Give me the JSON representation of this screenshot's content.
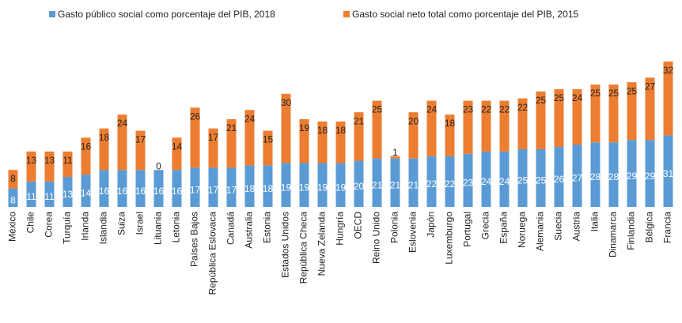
{
  "chart_data": {
    "type": "stacked_bar",
    "categories": [
      "México",
      "Chile",
      "Corea",
      "Turquía",
      "Irlanda",
      "Islandia",
      "Suiza",
      "Israel",
      "Lituania",
      "Letonia",
      "Países Bajos",
      "República Eslovaca",
      "Canadá",
      "Australia",
      "Estonia",
      "Estados Unidos",
      "República Checa",
      "Nueva Zelanda",
      "Hungría",
      "OECD",
      "Reino Unido",
      "Polonia",
      "Eslovenia",
      "Japón",
      "Luxemburgo",
      "Portugal",
      "Grecia",
      "España",
      "Noruega",
      "Alemania",
      "Suecia",
      "Austria",
      "Italia",
      "Dinamarca",
      "Finlandia",
      "Bélgica",
      "Francia"
    ],
    "series": [
      {
        "name": "Gasto público social como porcentaje del PIB, 2018",
        "color": "#5b9bd5",
        "values": [
          8,
          11,
          11,
          13,
          14,
          16,
          16,
          16,
          16,
          16,
          17,
          17,
          17,
          18,
          18,
          19,
          19,
          19,
          19,
          20,
          21,
          21,
          21,
          22,
          22,
          23,
          24,
          24,
          25,
          25,
          26,
          27,
          28,
          28,
          29,
          29,
          31
        ]
      },
      {
        "name": "Gasto social neto total como porcentaje del PIB, 2015",
        "color": "#ed7d31",
        "values": [
          8,
          13,
          13,
          11,
          16,
          18,
          24,
          17,
          0,
          14,
          26,
          17,
          21,
          24,
          15,
          30,
          19,
          18,
          18,
          21,
          25,
          1,
          20,
          24,
          18,
          23,
          22,
          22,
          22,
          25,
          25,
          24,
          25,
          25,
          25,
          27,
          32
        ]
      }
    ],
    "ylim": [
      0,
      65
    ]
  }
}
